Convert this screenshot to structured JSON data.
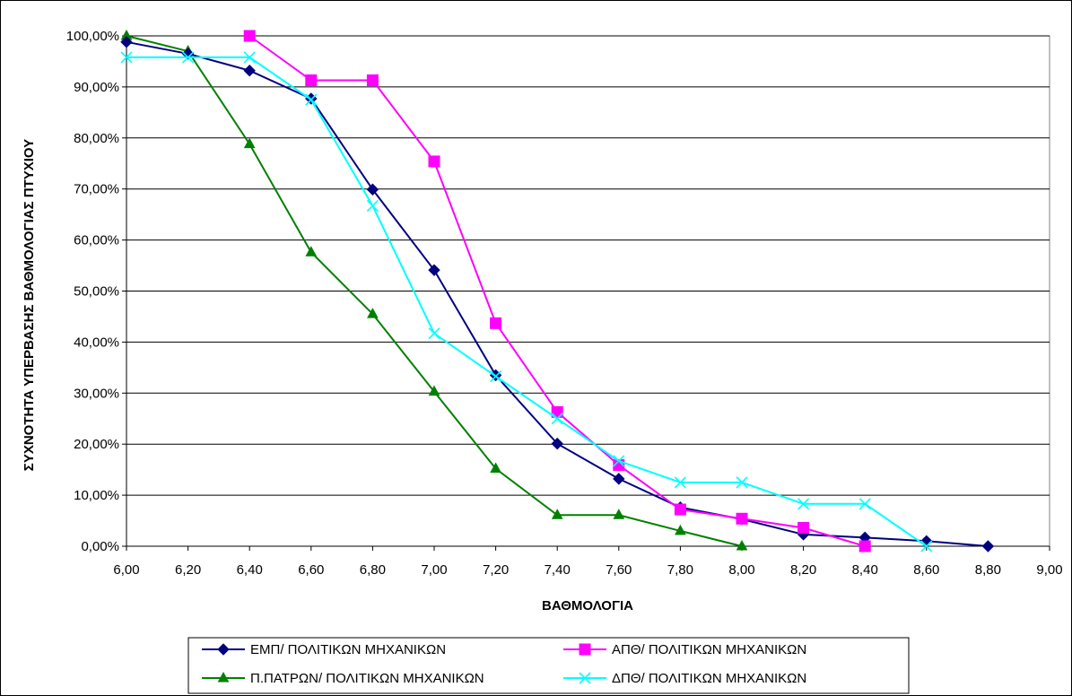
{
  "chart_data": {
    "type": "line",
    "title": "",
    "xlabel": "ΒΑΘΜΟΛΟΓΙΑ",
    "ylabel": "ΣΥΧΝΟΤΗΤΑ ΥΠΕΡΒΑΣΗΣ ΒΑΘΜΟΛΟΓΙΑΣ ΠΤΥΧΙΟΥ",
    "xlim": [
      6.0,
      9.0
    ],
    "ylim": [
      0,
      100
    ],
    "x_ticks": [
      "6,00",
      "6,20",
      "6,40",
      "6,60",
      "6,80",
      "7,00",
      "7,20",
      "7,40",
      "7,60",
      "7,80",
      "8,00",
      "8,20",
      "8,40",
      "8,60",
      "8,80",
      "9,00"
    ],
    "y_ticks": [
      "0,00%",
      "10,00%",
      "20,00%",
      "30,00%",
      "40,00%",
      "50,00%",
      "60,00%",
      "70,00%",
      "80,00%",
      "90,00%",
      "100,00%"
    ],
    "grid": "horizontal",
    "legend_position": "bottom",
    "series": [
      {
        "name": "ΕΜΠ/ ΠΟΛΙΤΙΚΩΝ ΜΗΧΑΝΙΚΩΝ",
        "color": "#000080",
        "marker": "diamond",
        "x": [
          6.0,
          6.2,
          6.4,
          6.6,
          6.8,
          7.0,
          7.2,
          7.4,
          7.6,
          7.8,
          8.0,
          8.2,
          8.4,
          8.6,
          8.8
        ],
        "y": [
          98.8,
          96.5,
          93.2,
          87.7,
          69.9,
          54.1,
          33.5,
          20.1,
          13.2,
          7.6,
          5.3,
          2.3,
          1.7,
          1.0,
          0.0
        ]
      },
      {
        "name": "ΑΠΘ/ ΠΟΛΙΤΙΚΩΝ ΜΗΧΑΝΙΚΩΝ",
        "color": "#FF00FF",
        "marker": "square",
        "x": [
          6.4,
          6.6,
          6.8,
          7.0,
          7.2,
          7.4,
          7.6,
          7.8,
          8.0,
          8.2,
          8.4
        ],
        "y": [
          100.0,
          91.3,
          91.3,
          75.4,
          43.7,
          26.3,
          15.9,
          7.2,
          5.4,
          3.6,
          0.0
        ]
      },
      {
        "name": "Π.ΠΑΤΡΩΝ/ ΠΟΛΙΤΙΚΩΝ ΜΗΧΑΝΙΚΩΝ",
        "color": "#008000",
        "marker": "triangle",
        "x": [
          6.0,
          6.2,
          6.4,
          6.6,
          6.8,
          7.0,
          7.2,
          7.4,
          7.6,
          7.8,
          8.0
        ],
        "y": [
          100.0,
          97.0,
          78.8,
          57.6,
          45.5,
          30.3,
          15.2,
          6.1,
          6.1,
          3.0,
          0.0
        ]
      },
      {
        "name": "ΔΠΘ/ ΠΟΛΙΤΙΚΩΝ ΜΗΧΑΝΙΚΩΝ",
        "color": "#00FFFF",
        "marker": "x",
        "x": [
          6.0,
          6.2,
          6.4,
          6.6,
          6.8,
          7.0,
          7.2,
          7.4,
          7.6,
          7.8,
          8.0,
          8.2,
          8.4,
          8.6
        ],
        "y": [
          95.8,
          95.8,
          95.8,
          87.5,
          66.7,
          41.7,
          33.3,
          25.0,
          16.7,
          12.5,
          12.5,
          8.3,
          8.3,
          0.0
        ]
      }
    ]
  }
}
